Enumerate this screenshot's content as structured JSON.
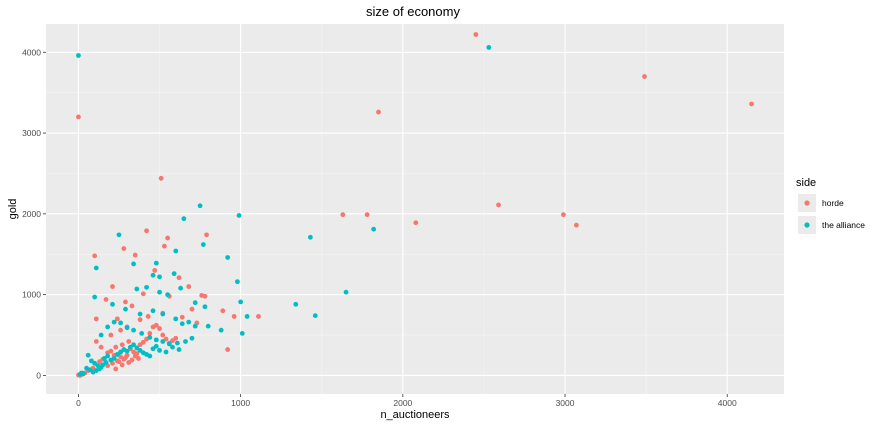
{
  "chart_data": {
    "type": "scatter",
    "title": "size of economy",
    "xlabel": "n_auctioneers",
    "ylabel": "gold",
    "xlim": [
      -200,
      4350
    ],
    "ylim": [
      -230,
      4350
    ],
    "x_ticks": [
      0,
      1000,
      2000,
      3000,
      4000
    ],
    "y_ticks": [
      0,
      1000,
      2000,
      3000,
      4000
    ],
    "grid": true,
    "panel_background": "#EBEBEB",
    "legend": {
      "title": "side",
      "position": "right",
      "entries": [
        {
          "label": "horde",
          "color": "#F8766D"
        },
        {
          "label": "the alliance",
          "color": "#00BFC4"
        }
      ]
    },
    "series": [
      {
        "name": "horde",
        "color": "#F8766D",
        "points": [
          [
            2450,
            4220
          ],
          [
            3490,
            3700
          ],
          [
            4150,
            3360
          ],
          [
            0,
            3200
          ],
          [
            1850,
            3260
          ],
          [
            510,
            2440
          ],
          [
            1630,
            1990
          ],
          [
            1780,
            1990
          ],
          [
            2990,
            1990
          ],
          [
            2590,
            2110
          ],
          [
            2080,
            1890
          ],
          [
            3070,
            1860
          ],
          [
            280,
            1570
          ],
          [
            420,
            1790
          ],
          [
            550,
            1700
          ],
          [
            790,
            1740
          ],
          [
            100,
            1480
          ],
          [
            350,
            1490
          ],
          [
            530,
            1600
          ],
          [
            470,
            1300
          ],
          [
            620,
            1210
          ],
          [
            680,
            1100
          ],
          [
            400,
            1010
          ],
          [
            560,
            980
          ],
          [
            760,
            990
          ],
          [
            780,
            980
          ],
          [
            210,
            1100
          ],
          [
            170,
            940
          ],
          [
            290,
            910
          ],
          [
            330,
            860
          ],
          [
            110,
            700
          ],
          [
            240,
            700
          ],
          [
            380,
            690
          ],
          [
            430,
            730
          ],
          [
            520,
            770
          ],
          [
            640,
            720
          ],
          [
            700,
            820
          ],
          [
            730,
            650
          ],
          [
            890,
            800
          ],
          [
            960,
            730
          ],
          [
            1110,
            730
          ],
          [
            920,
            320
          ],
          [
            110,
            420
          ],
          [
            140,
            350
          ],
          [
            180,
            280
          ],
          [
            200,
            300
          ],
          [
            220,
            250
          ],
          [
            240,
            180
          ],
          [
            260,
            230
          ],
          [
            280,
            200
          ],
          [
            300,
            250
          ],
          [
            320,
            330
          ],
          [
            340,
            290
          ],
          [
            360,
            270
          ],
          [
            380,
            380
          ],
          [
            400,
            410
          ],
          [
            420,
            450
          ],
          [
            440,
            520
          ],
          [
            460,
            600
          ],
          [
            480,
            620
          ],
          [
            500,
            580
          ],
          [
            520,
            500
          ],
          [
            540,
            450
          ],
          [
            560,
            400
          ],
          [
            580,
            430
          ],
          [
            600,
            460
          ],
          [
            180,
            120
          ],
          [
            210,
            150
          ],
          [
            230,
            80
          ],
          [
            250,
            170
          ],
          [
            270,
            130
          ],
          [
            290,
            220
          ],
          [
            310,
            160
          ],
          [
            330,
            190
          ],
          [
            350,
            240
          ],
          [
            370,
            210
          ],
          [
            230,
            350
          ],
          [
            270,
            380
          ],
          [
            310,
            420
          ],
          [
            200,
            500
          ],
          [
            260,
            560
          ],
          [
            300,
            600
          ],
          [
            150,
            200
          ],
          [
            130,
            170
          ],
          [
            90,
            90
          ],
          [
            60,
            60
          ],
          [
            40,
            30
          ],
          [
            20,
            10
          ],
          [
            10,
            0
          ],
          [
            0,
            5
          ]
        ]
      },
      {
        "name": "the alliance",
        "color": "#00BFC4",
        "points": [
          [
            0,
            3960
          ],
          [
            2530,
            4060
          ],
          [
            750,
            2100
          ],
          [
            990,
            1980
          ],
          [
            650,
            1940
          ],
          [
            250,
            1740
          ],
          [
            1430,
            1710
          ],
          [
            1650,
            1030
          ],
          [
            1820,
            1810
          ],
          [
            770,
            1620
          ],
          [
            600,
            1540
          ],
          [
            920,
            1460
          ],
          [
            110,
            1330
          ],
          [
            340,
            1380
          ],
          [
            480,
            1390
          ],
          [
            460,
            1240
          ],
          [
            500,
            1220
          ],
          [
            590,
            1260
          ],
          [
            980,
            1160
          ],
          [
            1000,
            910
          ],
          [
            1040,
            730
          ],
          [
            1010,
            520
          ],
          [
            1340,
            880
          ],
          [
            1460,
            740
          ],
          [
            360,
            1070
          ],
          [
            420,
            1090
          ],
          [
            500,
            1030
          ],
          [
            550,
            1000
          ],
          [
            630,
            1080
          ],
          [
            720,
            900
          ],
          [
            780,
            850
          ],
          [
            100,
            970
          ],
          [
            210,
            880
          ],
          [
            290,
            820
          ],
          [
            380,
            760
          ],
          [
            460,
            800
          ],
          [
            520,
            760
          ],
          [
            600,
            700
          ],
          [
            640,
            640
          ],
          [
            680,
            660
          ],
          [
            720,
            610
          ],
          [
            800,
            610
          ],
          [
            880,
            560
          ],
          [
            140,
            500
          ],
          [
            180,
            600
          ],
          [
            220,
            660
          ],
          [
            260,
            650
          ],
          [
            300,
            590
          ],
          [
            340,
            560
          ],
          [
            390,
            520
          ],
          [
            440,
            470
          ],
          [
            480,
            440
          ],
          [
            520,
            420
          ],
          [
            560,
            390
          ],
          [
            610,
            400
          ],
          [
            660,
            420
          ],
          [
            700,
            460
          ],
          [
            60,
            250
          ],
          [
            80,
            180
          ],
          [
            100,
            150
          ],
          [
            120,
            120
          ],
          [
            140,
            100
          ],
          [
            160,
            210
          ],
          [
            180,
            240
          ],
          [
            200,
            190
          ],
          [
            220,
            210
          ],
          [
            240,
            260
          ],
          [
            260,
            290
          ],
          [
            280,
            320
          ],
          [
            300,
            300
          ],
          [
            320,
            350
          ],
          [
            340,
            380
          ],
          [
            360,
            340
          ],
          [
            380,
            310
          ],
          [
            400,
            280
          ],
          [
            420,
            260
          ],
          [
            440,
            240
          ],
          [
            460,
            330
          ],
          [
            480,
            360
          ],
          [
            500,
            310
          ],
          [
            540,
            290
          ],
          [
            580,
            350
          ],
          [
            620,
            320
          ],
          [
            50,
            90
          ],
          [
            70,
            70
          ],
          [
            90,
            40
          ],
          [
            110,
            60
          ],
          [
            130,
            80
          ],
          [
            150,
            130
          ],
          [
            170,
            160
          ],
          [
            30,
            20
          ],
          [
            20,
            30
          ],
          [
            10,
            15
          ]
        ]
      }
    ]
  }
}
